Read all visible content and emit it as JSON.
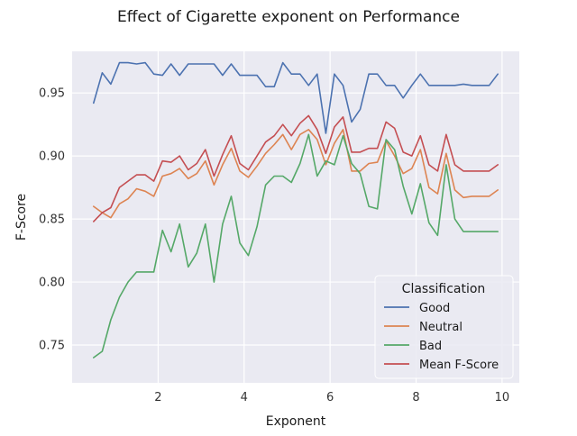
{
  "chart_data": {
    "type": "line",
    "title": "Effect of Cigarette exponent on Performance",
    "xlabel": "Exponent",
    "ylabel": "F-Score",
    "xlim": [
      0.0,
      10.4
    ],
    "ylim": [
      0.72,
      0.983
    ],
    "xticks": [
      2,
      4,
      6,
      8,
      10
    ],
    "yticks": [
      0.75,
      0.8,
      0.85,
      0.9,
      0.95
    ],
    "ytick_labels": [
      "0.75",
      "0.80",
      "0.85",
      "0.90",
      "0.95"
    ],
    "grid": true,
    "legend": {
      "title": "Classification",
      "position": "lower-right"
    },
    "x": [
      0.5,
      0.7,
      0.9,
      1.1,
      1.3,
      1.5,
      1.7,
      1.9,
      2.1,
      2.3,
      2.5,
      2.7,
      2.9,
      3.1,
      3.3,
      3.5,
      3.7,
      3.9,
      4.1,
      4.3,
      4.5,
      4.7,
      4.9,
      5.1,
      5.3,
      5.5,
      5.7,
      5.9,
      6.1,
      6.3,
      6.5,
      6.7,
      6.9,
      7.1,
      7.3,
      7.5,
      7.7,
      7.9,
      8.1,
      8.3,
      8.5,
      8.7,
      8.9,
      9.1,
      9.3,
      9.5,
      9.7,
      9.9
    ],
    "series": [
      {
        "name": "Good",
        "color": "#4c72b0",
        "values": [
          0.942,
          0.966,
          0.957,
          0.974,
          0.974,
          0.973,
          0.974,
          0.965,
          0.964,
          0.973,
          0.964,
          0.973,
          0.973,
          0.973,
          0.973,
          0.964,
          0.973,
          0.964,
          0.964,
          0.964,
          0.955,
          0.955,
          0.974,
          0.965,
          0.965,
          0.956,
          0.965,
          0.918,
          0.965,
          0.956,
          0.927,
          0.937,
          0.965,
          0.965,
          0.956,
          0.956,
          0.946,
          0.956,
          0.965,
          0.956,
          0.956,
          0.956,
          0.956,
          0.957,
          0.956,
          0.956,
          0.956,
          0.965
        ]
      },
      {
        "name": "Neutral",
        "color": "#dd8452",
        "values": [
          0.86,
          0.855,
          0.851,
          0.862,
          0.866,
          0.874,
          0.872,
          0.868,
          0.884,
          0.886,
          0.89,
          0.882,
          0.886,
          0.896,
          0.877,
          0.893,
          0.906,
          0.888,
          0.883,
          0.892,
          0.902,
          0.909,
          0.917,
          0.905,
          0.917,
          0.921,
          0.913,
          0.893,
          0.91,
          0.921,
          0.888,
          0.888,
          0.894,
          0.895,
          0.912,
          0.9,
          0.886,
          0.89,
          0.905,
          0.875,
          0.87,
          0.902,
          0.873,
          0.867,
          0.868,
          0.868,
          0.868,
          0.873
        ]
      },
      {
        "name": "Bad",
        "color": "#55a868",
        "values": [
          0.74,
          0.745,
          0.77,
          0.788,
          0.8,
          0.808,
          0.808,
          0.808,
          0.841,
          0.824,
          0.846,
          0.812,
          0.823,
          0.846,
          0.8,
          0.846,
          0.868,
          0.831,
          0.821,
          0.844,
          0.877,
          0.884,
          0.884,
          0.879,
          0.894,
          0.917,
          0.884,
          0.896,
          0.893,
          0.916,
          0.894,
          0.886,
          0.86,
          0.858,
          0.913,
          0.905,
          0.876,
          0.854,
          0.878,
          0.847,
          0.837,
          0.893,
          0.85,
          0.84,
          0.84,
          0.84,
          0.84,
          0.84
        ]
      },
      {
        "name": "Mean F-Score",
        "color": "#c44e52",
        "values": [
          0.848,
          0.855,
          0.859,
          0.875,
          0.88,
          0.885,
          0.885,
          0.88,
          0.896,
          0.895,
          0.9,
          0.889,
          0.894,
          0.905,
          0.884,
          0.901,
          0.916,
          0.894,
          0.889,
          0.9,
          0.911,
          0.916,
          0.925,
          0.916,
          0.926,
          0.932,
          0.921,
          0.902,
          0.923,
          0.931,
          0.903,
          0.903,
          0.906,
          0.906,
          0.927,
          0.922,
          0.903,
          0.9,
          0.916,
          0.893,
          0.888,
          0.917,
          0.893,
          0.888,
          0.888,
          0.888,
          0.888,
          0.893
        ]
      }
    ]
  }
}
